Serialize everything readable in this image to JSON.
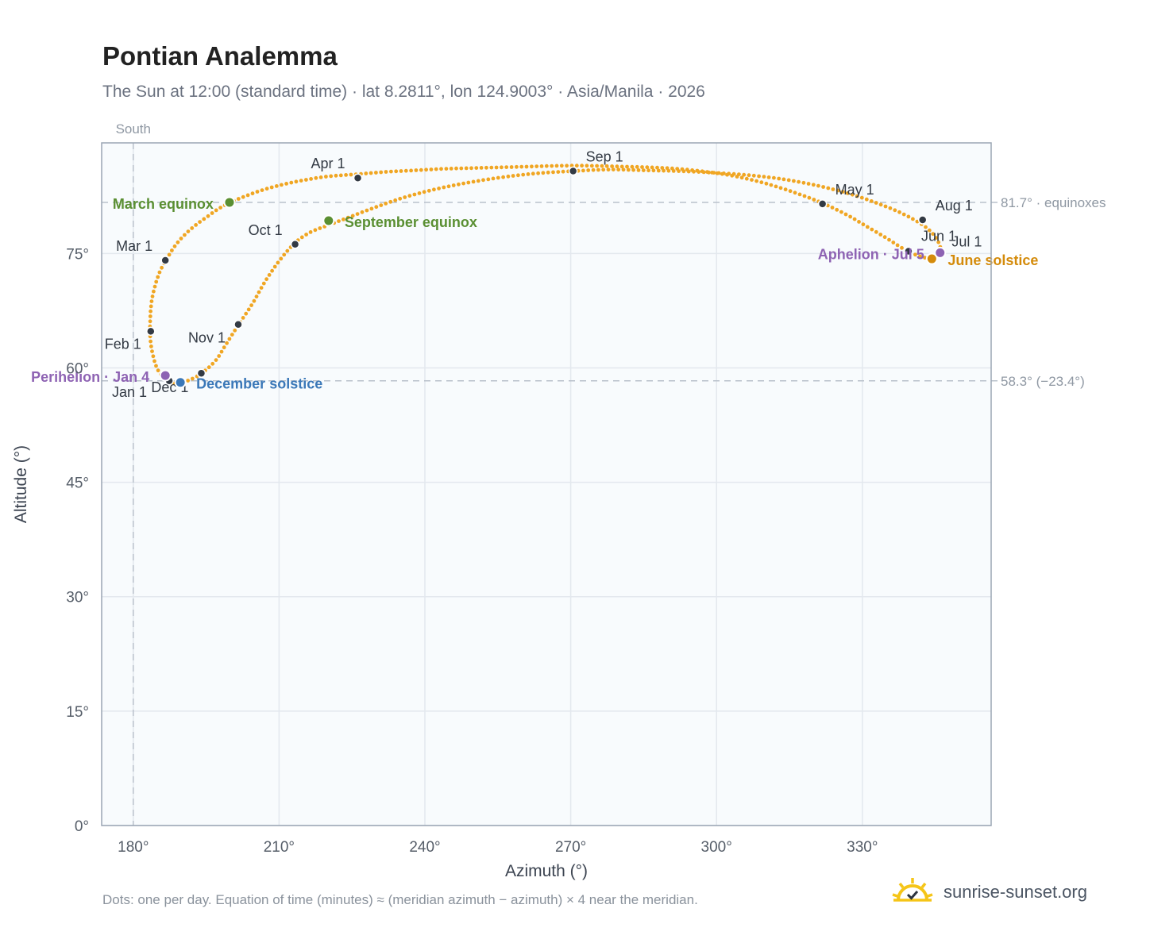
{
  "title": "Pontian Analemma",
  "subtitle": "The Sun at 12:00 (standard time) · lat 8.2811°, lon 124.9003° · Asia/Manila · 2026",
  "footnote": "Dots: one per day. Equation of time (minutes) ≈ (meridian azimuth − azimuth) × 4 near the meridian.",
  "brand": {
    "name": "sunrise-sunset.org",
    "icon": "sun-logo-icon"
  },
  "colors": {
    "curve": "#f0a623",
    "month_marker": "#333a44",
    "equinox": "#5a8f32",
    "june_solstice": "#d48b0b",
    "december_solstice": "#3b78b8",
    "apsides": "#8e63b3",
    "plot_bg": "#f8fbfd",
    "grid": "#e3e8ee",
    "reference_line": "#b9c1cb"
  },
  "chart_data": {
    "type": "scatter",
    "title": "Pontian Analemma",
    "xlabel": "Azimuth (°)",
    "ylabel": "Altitude (°)",
    "xlim": [
      173.5,
      356.5
    ],
    "ylim": [
      0,
      89.5
    ],
    "xticks": [
      180,
      210,
      240,
      270,
      300,
      330
    ],
    "xtick_labels": [
      "180°",
      "210°",
      "240°",
      "270°",
      "300°",
      "330°"
    ],
    "yticks": [
      0,
      15,
      30,
      45,
      60,
      75
    ],
    "ytick_labels": [
      "0°",
      "15°",
      "30°",
      "45°",
      "60°",
      "75°"
    ],
    "grid": true,
    "meridian_line": {
      "azimuth": 180,
      "label": "South"
    },
    "reference_lines": [
      {
        "altitude": 81.7,
        "label": "81.7° · equinoxes"
      },
      {
        "altitude": 58.3,
        "label": "58.3° (−23.4°)"
      }
    ],
    "curve_points": [
      [
        188.2,
        58.0
      ],
      [
        186.5,
        58.6
      ],
      [
        185.0,
        59.8
      ],
      [
        184.0,
        61.8
      ],
      [
        183.5,
        64.0
      ],
      [
        183.5,
        66.5
      ],
      [
        183.8,
        68.8
      ],
      [
        184.6,
        71.0
      ],
      [
        185.6,
        72.8
      ],
      [
        187.0,
        74.4
      ],
      [
        188.6,
        76.0
      ],
      [
        190.5,
        77.4
      ],
      [
        192.8,
        78.7
      ],
      [
        195.4,
        79.9
      ],
      [
        197.4,
        80.8
      ],
      [
        200.0,
        81.7
      ],
      [
        203.0,
        82.5
      ],
      [
        206.5,
        83.3
      ],
      [
        210.5,
        84.0
      ],
      [
        215.0,
        84.6
      ],
      [
        220.0,
        85.1
      ],
      [
        226.2,
        85.4
      ],
      [
        232.0,
        85.7
      ],
      [
        238.0,
        85.9
      ],
      [
        244.0,
        86.1
      ],
      [
        250.0,
        86.2
      ],
      [
        256.0,
        86.3
      ],
      [
        262.0,
        86.4
      ],
      [
        268.0,
        86.5
      ],
      [
        274.0,
        86.5
      ],
      [
        280.0,
        86.4
      ],
      [
        286.0,
        86.3
      ],
      [
        292.0,
        86.1
      ],
      [
        298.0,
        85.7
      ],
      [
        304.0,
        85.1
      ],
      [
        310.0,
        84.2
      ],
      [
        316.0,
        83.0
      ],
      [
        321.8,
        81.6
      ],
      [
        327.0,
        80.0
      ],
      [
        331.0,
        78.5
      ],
      [
        335.0,
        77.0
      ],
      [
        339.0,
        75.4
      ],
      [
        342.0,
        74.6
      ],
      [
        344.3,
        74.3
      ],
      [
        345.5,
        74.6
      ],
      [
        346.3,
        75.1
      ],
      [
        346.0,
        75.9
      ],
      [
        345.0,
        77.2
      ],
      [
        342.5,
        78.7
      ],
      [
        338.0,
        80.3
      ],
      [
        333.0,
        81.6
      ],
      [
        327.0,
        82.9
      ],
      [
        320.0,
        84.0
      ],
      [
        313.0,
        84.8
      ],
      [
        306.0,
        85.3
      ],
      [
        299.0,
        85.6
      ],
      [
        292.0,
        85.8
      ],
      [
        285.0,
        85.9
      ],
      [
        278.0,
        86.0
      ],
      [
        270.5,
        85.8
      ],
      [
        263.0,
        85.5
      ],
      [
        256.0,
        85.0
      ],
      [
        249.0,
        84.3
      ],
      [
        242.0,
        83.4
      ],
      [
        235.5,
        82.3
      ],
      [
        230.0,
        81.1
      ],
      [
        225.0,
        79.9
      ],
      [
        220.5,
        78.8
      ],
      [
        216.5,
        77.8
      ],
      [
        213.3,
        76.4
      ],
      [
        210.0,
        74.0
      ],
      [
        207.0,
        71.2
      ],
      [
        204.5,
        68.4
      ],
      [
        201.7,
        65.7
      ],
      [
        199.0,
        63.0
      ],
      [
        197.0,
        61.0
      ],
      [
        194.1,
        59.3
      ],
      [
        191.5,
        58.4
      ],
      [
        189.7,
        58.1
      ],
      [
        188.2,
        58.0
      ]
    ],
    "month_markers": [
      {
        "label": "Jan 1",
        "azimuth": 187.4,
        "altitude": 58.3
      },
      {
        "label": "Feb 1",
        "azimuth": 183.6,
        "altitude": 64.8
      },
      {
        "label": "Mar 1",
        "azimuth": 186.6,
        "altitude": 74.1
      },
      {
        "label": "Apr 1",
        "azimuth": 226.2,
        "altitude": 84.9
      },
      {
        "label": "May 1",
        "azimuth": 321.8,
        "altitude": 81.5
      },
      {
        "label": "Jun 1",
        "azimuth": 339.5,
        "altitude": 75.3
      },
      {
        "label": "Jul 1",
        "azimuth": 346.1,
        "altitude": 75.1
      },
      {
        "label": "Aug 1",
        "azimuth": 342.4,
        "altitude": 79.4
      },
      {
        "label": "Sep 1",
        "azimuth": 270.5,
        "altitude": 85.8
      },
      {
        "label": "Oct 1",
        "azimuth": 213.3,
        "altitude": 76.2
      },
      {
        "label": "Nov 1",
        "azimuth": 201.6,
        "altitude": 65.7
      },
      {
        "label": "Dec 1",
        "azimuth": 194.0,
        "altitude": 59.3
      }
    ],
    "events": [
      {
        "label": "March equinox",
        "azimuth": 199.8,
        "altitude": 81.7,
        "color": "#5a8f32"
      },
      {
        "label": "September equinox",
        "azimuth": 220.2,
        "altitude": 79.3,
        "color": "#5a8f32"
      },
      {
        "label": "June solstice",
        "azimuth": 344.3,
        "altitude": 74.3,
        "color": "#d48b0b"
      },
      {
        "label": "December solstice",
        "azimuth": 189.7,
        "altitude": 58.1,
        "color": "#3b78b8"
      },
      {
        "label": "Perihelion · Jan 4",
        "azimuth": 186.6,
        "altitude": 59.0,
        "color": "#8e63b3"
      },
      {
        "label": "Aphelion · Jul 5",
        "azimuth": 346.0,
        "altitude": 75.1,
        "color": "#8e63b3"
      }
    ]
  }
}
